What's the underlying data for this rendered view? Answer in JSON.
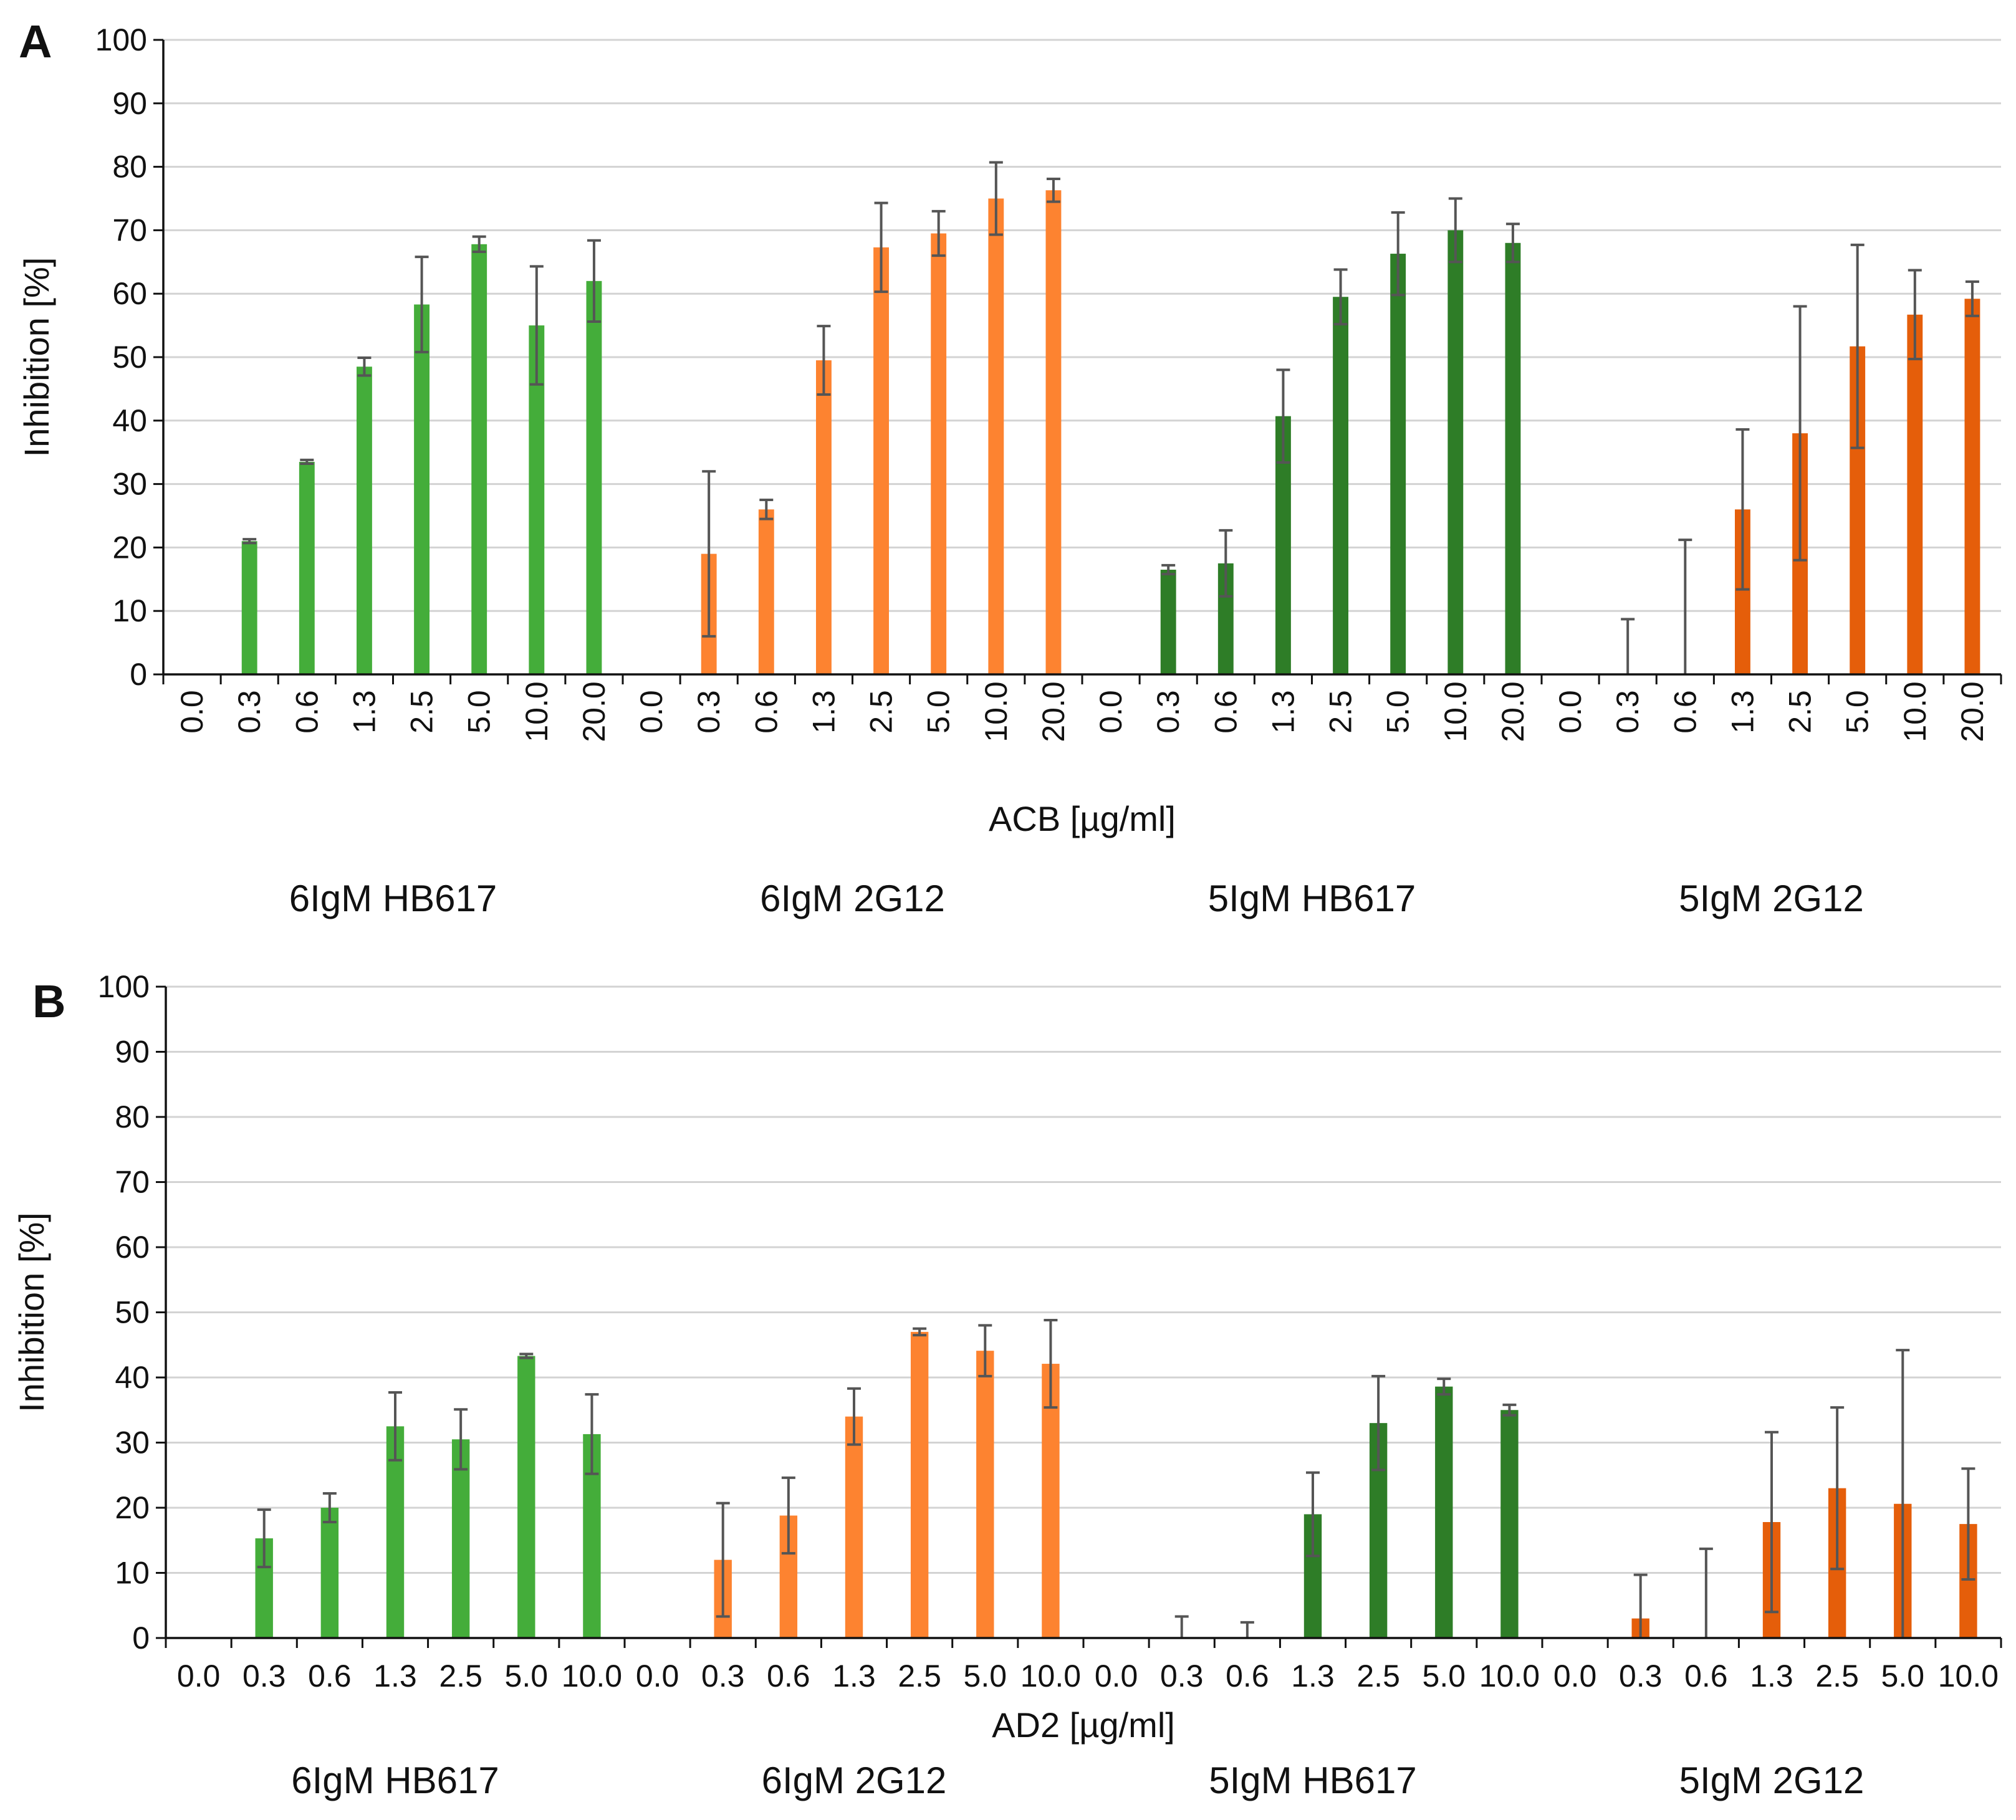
{
  "colors": {
    "light_green": "#44ad3a",
    "light_orange": "#fd8330",
    "dark_green": "#2e7d27",
    "dark_orange": "#e55e0a",
    "error_bar": "#555555"
  },
  "chart_data": [
    {
      "panel": "A",
      "type": "bar",
      "ylabel": "Inhibition [%]",
      "xlabel": "ACB [µg/ml]",
      "ylim": [
        0,
        100
      ],
      "yticks": [
        "0",
        "10",
        "20",
        "30",
        "40",
        "50",
        "60",
        "70",
        "80",
        "90",
        "100"
      ],
      "grid": true,
      "groups": [
        {
          "label": "6IgM  HB617",
          "color_key": "light_green",
          "categories": [
            "0.0",
            "0.3",
            "0.6",
            "1.3",
            "2.5",
            "5.0",
            "10.0",
            "20.0"
          ],
          "values": [
            0,
            21,
            33.5,
            48.5,
            58.3,
            67.8,
            55,
            62
          ],
          "errors": [
            0,
            0.3,
            0.3,
            1.4,
            7.5,
            1.2,
            9.3,
            6.4
          ]
        },
        {
          "label": "6IgM  2G12",
          "color_key": "light_orange",
          "categories": [
            "0.0",
            "0.3",
            "0.6",
            "1.3",
            "2.5",
            "5.0",
            "10.0",
            "20.0"
          ],
          "values": [
            0,
            19,
            26,
            49.5,
            67.3,
            69.5,
            75,
            76.3
          ],
          "errors": [
            0,
            13,
            1.5,
            5.4,
            7,
            3.5,
            5.7,
            1.8
          ]
        },
        {
          "label": "5IgM  HB617",
          "color_key": "dark_green",
          "categories": [
            "0.0",
            "0.3",
            "0.6",
            "1.3",
            "2.5",
            "5.0",
            "10.0",
            "20.0"
          ],
          "values": [
            0,
            16.5,
            17.5,
            40.7,
            59.5,
            66.3,
            70,
            68
          ],
          "errors": [
            0,
            0.7,
            5.2,
            7.3,
            4.3,
            6.5,
            5,
            3
          ]
        },
        {
          "label": "5IgM  2G12",
          "color_key": "dark_orange",
          "categories": [
            "0.0",
            "0.3",
            "0.6",
            "1.3",
            "2.5",
            "5.0",
            "10.0",
            "20.0"
          ],
          "values": [
            0,
            0,
            0,
            26,
            38,
            51.7,
            56.7,
            59.2
          ],
          "errors": [
            0,
            8.7,
            21.2,
            12.6,
            20,
            16,
            7,
            2.7
          ]
        }
      ]
    },
    {
      "panel": "B",
      "type": "bar",
      "ylabel": "Inhibition [%]",
      "xlabel": "AD2 [µg/ml]",
      "ylim": [
        0,
        100
      ],
      "yticks": [
        "0",
        "10",
        "20",
        "30",
        "40",
        "50",
        "60",
        "70",
        "80",
        "90",
        "100"
      ],
      "grid": true,
      "groups": [
        {
          "label": "6IgM  HB617",
          "color_key": "light_green",
          "categories": [
            "0.0",
            "0.3",
            "0.6",
            "1.3",
            "2.5",
            "5.0",
            "10.0"
          ],
          "values": [
            0,
            15.3,
            20,
            32.5,
            30.5,
            43.3,
            31.3
          ],
          "errors": [
            0,
            4.4,
            2.2,
            5.2,
            4.6,
            0.3,
            6.1
          ]
        },
        {
          "label": "6IgM  2G12",
          "color_key": "light_orange",
          "categories": [
            "0.0",
            "0.3",
            "0.6",
            "1.3",
            "2.5",
            "5.0",
            "10.0"
          ],
          "values": [
            0,
            12,
            18.8,
            34,
            47,
            44.1,
            42.1
          ],
          "errors": [
            0,
            8.7,
            5.8,
            4.3,
            0.5,
            3.9,
            6.7
          ]
        },
        {
          "label": "5IgM  HB617",
          "color_key": "dark_green",
          "categories": [
            "0.0",
            "0.3",
            "0.6",
            "1.3",
            "2.5",
            "5.0",
            "10.0"
          ],
          "values": [
            0,
            0,
            0,
            19,
            33,
            38.6,
            35
          ],
          "errors": [
            0,
            3.3,
            2.4,
            6.4,
            7.2,
            1.2,
            0.8
          ]
        },
        {
          "label": "5IgM  2G12",
          "color_key": "dark_orange",
          "categories": [
            "0.0",
            "0.3",
            "0.6",
            "1.3",
            "2.5",
            "5.0",
            "10.0"
          ],
          "values": [
            0,
            3,
            0,
            17.8,
            23,
            20.6,
            17.5
          ],
          "errors": [
            0,
            6.7,
            13.7,
            13.8,
            12.4,
            23.6,
            8.5
          ]
        }
      ]
    }
  ]
}
